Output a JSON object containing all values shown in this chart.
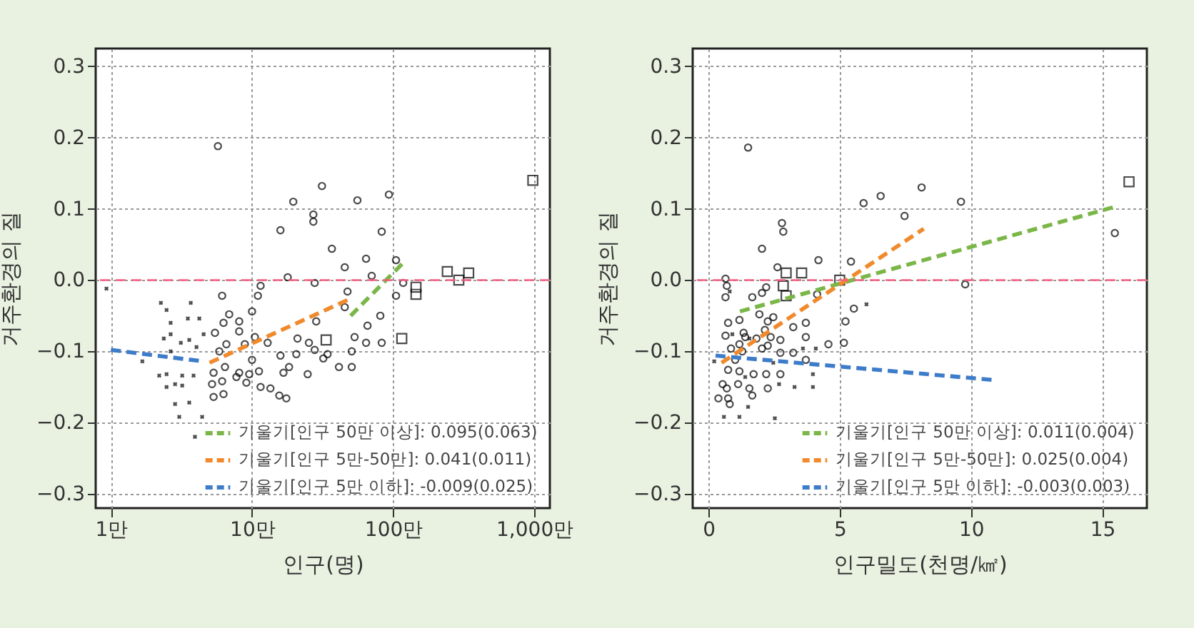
{
  "chart_data": [
    {
      "type": "scatter",
      "xlabel": "인구(명)",
      "ylabel": "거주환경의 질",
      "log": "x",
      "grid": true,
      "legend": "bottom right",
      "xlim": [
        0.78,
        1290
      ],
      "ylim": [
        -0.32,
        0.325
      ],
      "xticks": [
        {
          "value": 1,
          "label": "1만"
        },
        {
          "value": 10,
          "label": "10만"
        },
        {
          "value": 100,
          "label": "100만"
        },
        {
          "value": 1000,
          "label": "1,000만"
        }
      ],
      "yticks": [
        -0.3,
        -0.2,
        -0.1,
        {
          "value": 0,
          "label": "0.0"
        },
        0.1,
        0.2,
        0.3
      ],
      "ref_lines": [
        {
          "axis": "y",
          "value": 0,
          "color": "#f06080",
          "line_style": "dashed"
        }
      ],
      "series": [
        {
          "marker": "cross",
          "color": "#000000",
          "x": [
            0.93,
            2.26,
            2.48,
            3.68,
            2.65,
            3.51,
            4.23,
            2.37,
            2.65,
            3.13,
            3.59,
            4.54,
            2.65,
            4.04,
            1.67,
            2.2,
            2.48,
            3.2,
            3.85,
            2.85,
            2.48,
            3.2,
            2.85,
            3.59,
            3.05,
            4.43,
            3.94
          ],
          "values": [
            -0.012,
            -0.032,
            -0.042,
            -0.032,
            -0.06,
            -0.054,
            -0.054,
            -0.082,
            -0.076,
            -0.088,
            -0.084,
            -0.076,
            -0.1,
            -0.094,
            -0.114,
            -0.134,
            -0.132,
            -0.134,
            -0.134,
            -0.146,
            -0.15,
            -0.148,
            -0.174,
            -0.172,
            -0.192,
            -0.192,
            -0.22
          ]
        },
        {
          "marker": "circle",
          "color": "#000000",
          "x": [
            5.73,
            31.3,
            19.6,
            27.2,
            27.2,
            15.9,
            36.8,
            17.9,
            27.8,
            11.5,
            11,
            6.14,
            6.89,
            10,
            6.28,
            8.11,
            5.46,
            8.11,
            10.47,
            12.9,
            6.58,
            8.89,
            21,
            25.3,
            15.9,
            20.6,
            27.8,
            32,
            10,
            5.86,
            6.43,
            5.34,
            8.11,
            9.55,
            11.2,
            5.21,
            6.14,
            7.75,
            9.12,
            11.5,
            13.5,
            16.7,
            18.3,
            24.8,
            5.34,
            6.28,
            15.6,
            17.5,
            41.3,
            34.3,
            55.8,
            93.3,
            83,
            64.3,
            104.8,
            45.4,
            70.5,
            117.8,
            104.8,
            47.5,
            45.4,
            81.1,
            28.5,
            65.8,
            53.3,
            64.3,
            83,
            50.9,
            50.9
          ],
          "values": [
            0.188,
            0.132,
            0.11,
            0.092,
            0.082,
            0.07,
            0.044,
            0.004,
            -0.004,
            -0.008,
            -0.022,
            -0.022,
            -0.048,
            -0.044,
            -0.06,
            -0.058,
            -0.074,
            -0.072,
            -0.08,
            -0.088,
            -0.09,
            -0.09,
            -0.082,
            -0.088,
            -0.106,
            -0.104,
            -0.098,
            -0.11,
            -0.112,
            -0.1,
            -0.122,
            -0.13,
            -0.13,
            -0.132,
            -0.128,
            -0.146,
            -0.142,
            -0.136,
            -0.144,
            -0.15,
            -0.152,
            -0.13,
            -0.122,
            -0.132,
            -0.164,
            -0.16,
            -0.162,
            -0.166,
            -0.122,
            -0.104,
            0.112,
            0.12,
            0.068,
            0.03,
            0.028,
            0.018,
            0.006,
            -0.004,
            -0.022,
            -0.016,
            -0.038,
            -0.05,
            -0.058,
            -0.064,
            -0.08,
            -0.088,
            -0.088,
            -0.1,
            -0.122
          ]
        },
        {
          "marker": "square",
          "color": "#000000",
          "x": [
            33.5,
            115.1,
            145.2,
            145.2,
            242,
            292,
            343,
            977
          ],
          "values": [
            -0.084,
            -0.082,
            -0.01,
            -0.02,
            0.012,
            0,
            0.01,
            0.14
          ]
        },
        {
          "type": "line",
          "name": "기울기[인구 50만 이상]: 0.095(0.063)",
          "color": "#7ab648",
          "line_style": "dashed",
          "x": [
            50,
            117.5
          ],
          "values": [
            -0.05,
            0.024
          ]
        },
        {
          "type": "line",
          "name": "기울기[인구 5만-50만]: 0.041(0.011)",
          "color": "#f08a2c",
          "line_style": "dashed",
          "x": [
            5,
            50
          ],
          "values": [
            -0.116,
            -0.026
          ]
        },
        {
          "type": "line",
          "name": "기울기[인구 5만 이하]: -0.009(0.025)",
          "color": "#3d7cc9",
          "line_style": "dashed",
          "x": [
            1,
            4.5
          ],
          "values": [
            -0.098,
            -0.114
          ]
        }
      ]
    },
    {
      "type": "scatter",
      "xlabel": "인구밀도(천명/㎢)",
      "ylabel": "거주환경의 질",
      "grid": true,
      "legend": "bottom right",
      "xlim": [
        -0.6,
        16.7
      ],
      "ylim": [
        -0.32,
        0.325
      ],
      "xticks": [
        0,
        5,
        10,
        15
      ],
      "yticks": [
        -0.3,
        -0.2,
        -0.1,
        {
          "value": 0,
          "label": "0.0"
        },
        0.1,
        0.2,
        0.3
      ],
      "ref_lines": [
        {
          "axis": "y",
          "value": 0,
          "color": "#f06080",
          "line_style": "dashed"
        }
      ],
      "series": [
        {
          "marker": "cross",
          "color": "#000000",
          "x": [
            0.22,
            0.81,
            0.91,
            1.4,
            2.47,
            2.69,
            3.28,
            3.98,
            3.98,
            3.6,
            4.09,
            6.02,
            1.51,
            0.59,
            1.18,
            2.53,
            1.56
          ],
          "values": [
            -0.114,
            -0.016,
            -0.076,
            -0.136,
            -0.116,
            -0.146,
            -0.15,
            -0.15,
            -0.132,
            -0.096,
            -0.096,
            -0.034,
            -0.178,
            -0.192,
            -0.192,
            -0.194,
            -0.082
          ]
        },
        {
          "marker": "circle",
          "color": "#000000",
          "x": [
            1.51,
            2.8,
            2.85,
            2.04,
            2.63,
            4.19,
            5.43,
            0.65,
            0.7,
            0.65,
            2.2,
            2.04,
            1.67,
            4.14,
            5.54,
            5.22,
            1.18,
            0.75,
            1.94,
            2.26,
            2.47,
            3.23,
            3.71,
            0.65,
            1.4,
            1.83,
            2.37,
            2.74,
            3.71,
            4.57,
            5.16,
            0.86,
            1.29,
            2.04,
            2.26,
            3.23,
            2.74,
            3.71,
            1.02,
            1.18,
            0.75,
            1.72,
            2.2,
            2.74,
            0.54,
            1.13,
            0.7,
            1.56,
            2.26,
            1.67,
            0.38,
            0.75,
            0.81,
            1.34,
            2.15,
            1.18,
            5.91,
            6.56,
            8.12,
            7.47,
            9.62,
            9.78,
            15.48
          ],
          "values": [
            0.186,
            0.08,
            0.068,
            0.044,
            0.018,
            0.028,
            0.026,
            0.002,
            -0.008,
            -0.024,
            -0.01,
            -0.018,
            -0.024,
            -0.02,
            -0.04,
            -0.058,
            -0.056,
            -0.06,
            -0.048,
            -0.058,
            -0.052,
            -0.066,
            -0.06,
            -0.078,
            -0.08,
            -0.082,
            -0.08,
            -0.084,
            -0.08,
            -0.09,
            -0.088,
            -0.096,
            -0.1,
            -0.096,
            -0.092,
            -0.102,
            -0.102,
            -0.112,
            -0.112,
            -0.128,
            -0.126,
            -0.132,
            -0.132,
            -0.132,
            -0.146,
            -0.146,
            -0.152,
            -0.152,
            -0.152,
            -0.162,
            -0.166,
            -0.166,
            -0.174,
            -0.074,
            -0.07,
            -0.09,
            0.108,
            0.118,
            0.13,
            0.09,
            0.11,
            -0.006,
            0.066
          ]
        },
        {
          "marker": "square",
          "color": "#000000",
          "x": [
            2.96,
            3.55,
            2.85,
            2.96,
            5.0,
            16.02
          ],
          "values": [
            0.01,
            0.01,
            -0.008,
            -0.022,
            0,
            0.138
          ]
        },
        {
          "type": "line",
          "name": "기울기[인구 50만 이상]: 0.011(0.004)",
          "color": "#7ab648",
          "line_style": "dashed",
          "x": [
            1.2,
            15.4
          ],
          "values": [
            -0.044,
            0.102
          ]
        },
        {
          "type": "line",
          "name": "기울기[인구 5만-50만]: 0.025(0.004)",
          "color": "#f08a2c",
          "line_style": "dashed",
          "x": [
            0.5,
            8.2
          ],
          "values": [
            -0.116,
            0.072
          ]
        },
        {
          "type": "line",
          "name": "기울기[인구 5만 이하]: -0.003(0.003)",
          "color": "#3d7cc9",
          "line_style": "dashed",
          "x": [
            0.27,
            10.8
          ],
          "values": [
            -0.106,
            -0.14
          ]
        }
      ]
    }
  ]
}
